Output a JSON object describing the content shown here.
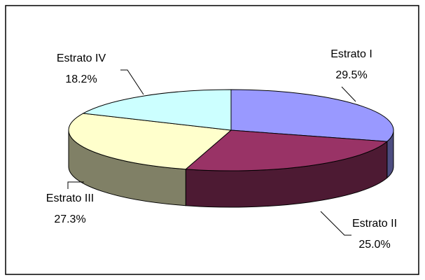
{
  "chart_data": {
    "type": "pie3d",
    "categories": [
      "Estrato I",
      "Estrato II",
      "Estrato III",
      "Estrato IV"
    ],
    "values": [
      29.5,
      25.0,
      27.3,
      18.2
    ],
    "value_labels": [
      "29.5%",
      "25.0%",
      "27.3%",
      "18.2%"
    ],
    "colors": [
      "#9999ff",
      "#993366",
      "#ffffcc",
      "#ccffff"
    ],
    "side_colors": [
      "#4d4d80",
      "#4d1a33",
      "#808066",
      "#668080"
    ]
  }
}
